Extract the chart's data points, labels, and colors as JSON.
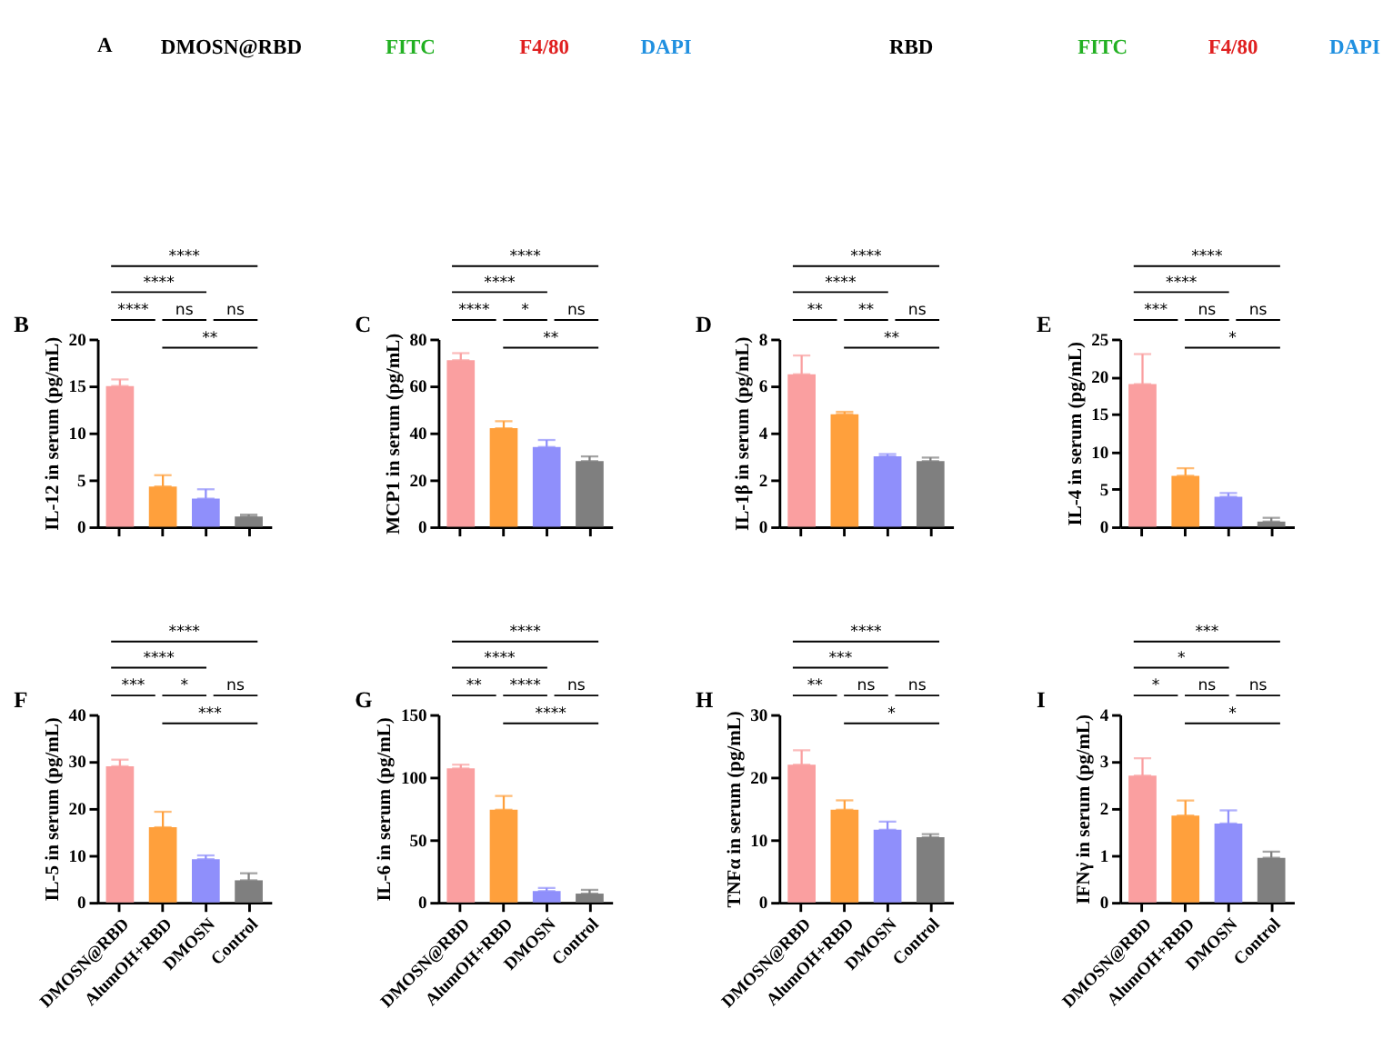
{
  "chart_data": [
    {
      "type": "other",
      "title": "A",
      "annotations": [
        "DMOSN@RBD",
        "FITC",
        "F4/80",
        "DAPI",
        "RBD",
        "FITC",
        "F4/80",
        "DAPI"
      ]
    },
    {
      "type": "bar",
      "title": "B",
      "ylabel": "IL-12 in serum (pg/mL)",
      "categories": [
        null,
        null,
        null,
        null
      ],
      "values": [
        15,
        4.3,
        3.0,
        1.1
      ],
      "errors": [
        [
          15,
          15.7
        ],
        [
          4.3,
          5.5
        ],
        [
          3.0,
          4.0
        ],
        [
          1.1,
          1.3
        ]
      ],
      "colors": [
        "#fa9fa0",
        "#ffa03c",
        "#8f8ffb",
        "#7f7f7f"
      ],
      "ylim": [
        0,
        20
      ],
      "yticks": [
        0,
        5,
        10,
        15,
        20
      ],
      "tick_labels": "y",
      "annotations": [
        "****",
        "****",
        "****",
        "ns",
        "ns",
        "**"
      ]
    },
    {
      "type": "bar",
      "title": "C",
      "ylabel": "MCP1 in serum (pg/mL)",
      "categories": [
        null,
        null,
        null,
        null
      ],
      "values": [
        71,
        42,
        34,
        28
      ],
      "errors": [
        [
          71,
          74
        ],
        [
          42,
          45
        ],
        [
          34,
          37
        ],
        [
          28,
          30
        ]
      ],
      "colors": [
        "#fa9fa0",
        "#ffa03c",
        "#8f8ffb",
        "#7f7f7f"
      ],
      "ylim": [
        0,
        80
      ],
      "yticks": [
        0,
        20,
        40,
        60,
        80
      ],
      "tick_labels": "y",
      "annotations": [
        "****",
        "****",
        "****",
        "*",
        "ns",
        "**"
      ]
    },
    {
      "type": "bar",
      "title": "D",
      "ylabel": "IL-1β in serum (pg/mL)",
      "categories": [
        null,
        null,
        null,
        null
      ],
      "values": [
        6.5,
        4.8,
        3.0,
        2.8
      ],
      "errors": [
        [
          6.5,
          7.3
        ],
        [
          4.8,
          4.9
        ],
        [
          3.0,
          3.1
        ],
        [
          2.8,
          2.95
        ]
      ],
      "colors": [
        "#fa9fa0",
        "#ffa03c",
        "#8f8ffb",
        "#7f7f7f"
      ],
      "ylim": [
        0,
        8
      ],
      "yticks": [
        0,
        2,
        4,
        6,
        8
      ],
      "tick_labels": "y",
      "annotations": [
        "****",
        "****",
        "**",
        "**",
        "ns",
        "**"
      ]
    },
    {
      "type": "bar",
      "title": "E",
      "ylabel": "IL-4 in serum (pg/mL)",
      "categories": [
        null,
        null,
        null,
        null
      ],
      "values": [
        19,
        6.8,
        4.0,
        0.7
      ],
      "errors": [
        [
          19,
          23
        ],
        [
          6.8,
          7.8
        ],
        [
          4.0,
          4.5
        ],
        [
          0.7,
          1.2
        ]
      ],
      "colors": [
        "#fa9fa0",
        "#ffa03c",
        "#8f8ffb",
        "#7f7f7f"
      ],
      "ylim": [
        0,
        25
      ],
      "yticks": [
        0,
        5,
        10,
        15,
        20,
        25
      ],
      "tick_labels": "y",
      "annotations": [
        "****",
        "****",
        "***",
        "ns",
        "ns",
        "*"
      ]
    },
    {
      "type": "bar",
      "title": "F",
      "ylabel": "IL-5 in serum (pg/mL)",
      "categories": [
        "DMOSN@RBD",
        "AlumOH+RBD",
        "DMOSN",
        "Control"
      ],
      "values": [
        29,
        16,
        9.2,
        4.7
      ],
      "errors": [
        [
          29,
          30.4
        ],
        [
          16,
          19.3
        ],
        [
          9.2,
          10
        ],
        [
          4.7,
          6.2
        ]
      ],
      "colors": [
        "#fa9fa0",
        "#ffa03c",
        "#8f8ffb",
        "#7f7f7f"
      ],
      "ylim": [
        0,
        40
      ],
      "yticks": [
        0,
        10,
        20,
        30,
        40
      ],
      "annotations": [
        "****",
        "****",
        "***",
        "*",
        "ns",
        "***"
      ]
    },
    {
      "type": "bar",
      "title": "G",
      "ylabel": "IL-6 in serum (pg/mL)",
      "categories": [
        "DMOSN@RBD",
        "AlumOH+RBD",
        "DMOSN",
        "Control"
      ],
      "values": [
        107,
        74,
        9,
        7
      ],
      "errors": [
        [
          107,
          110
        ],
        [
          74,
          85
        ],
        [
          9,
          11.5
        ],
        [
          7,
          10
        ]
      ],
      "colors": [
        "#fa9fa0",
        "#ffa03c",
        "#8f8ffb",
        "#7f7f7f"
      ],
      "ylim": [
        0,
        150
      ],
      "yticks": [
        0,
        50,
        100,
        150
      ],
      "annotations": [
        "****",
        "****",
        "**",
        "****",
        "ns",
        "****"
      ]
    },
    {
      "type": "bar",
      "title": "H",
      "ylabel": "TNFα in serum (pg/mL)",
      "categories": [
        "DMOSN@RBD",
        "AlumOH+RBD",
        "DMOSN",
        "Control"
      ],
      "values": [
        22,
        14.8,
        11.6,
        10.4
      ],
      "errors": [
        [
          22,
          24.3
        ],
        [
          14.8,
          16.3
        ],
        [
          11.6,
          12.9
        ],
        [
          10.4,
          10.9
        ]
      ],
      "colors": [
        "#fa9fa0",
        "#ffa03c",
        "#8f8ffb",
        "#7f7f7f"
      ],
      "ylim": [
        0,
        30
      ],
      "yticks": [
        0,
        10,
        20,
        30
      ],
      "annotations": [
        "****",
        "***",
        "**",
        "ns",
        "ns",
        "*"
      ]
    },
    {
      "type": "bar",
      "title": "I",
      "ylabel": "IFNγ in serum (pg/mL)",
      "categories": [
        "DMOSN@RBD",
        "AlumOH+RBD",
        "DMOSN",
        "Control"
      ],
      "values": [
        2.7,
        1.85,
        1.68,
        0.95
      ],
      "errors": [
        [
          2.7,
          3.07
        ],
        [
          1.85,
          2.17
        ],
        [
          1.68,
          1.96
        ],
        [
          0.95,
          1.08
        ]
      ],
      "colors": [
        "#fa9fa0",
        "#ffa03c",
        "#8f8ffb",
        "#7f7f7f"
      ],
      "ylim": [
        0,
        4
      ],
      "yticks": [
        0,
        1,
        2,
        3,
        4
      ],
      "annotations": [
        "***",
        "*",
        "*",
        "ns",
        "ns",
        "*"
      ]
    }
  ]
}
